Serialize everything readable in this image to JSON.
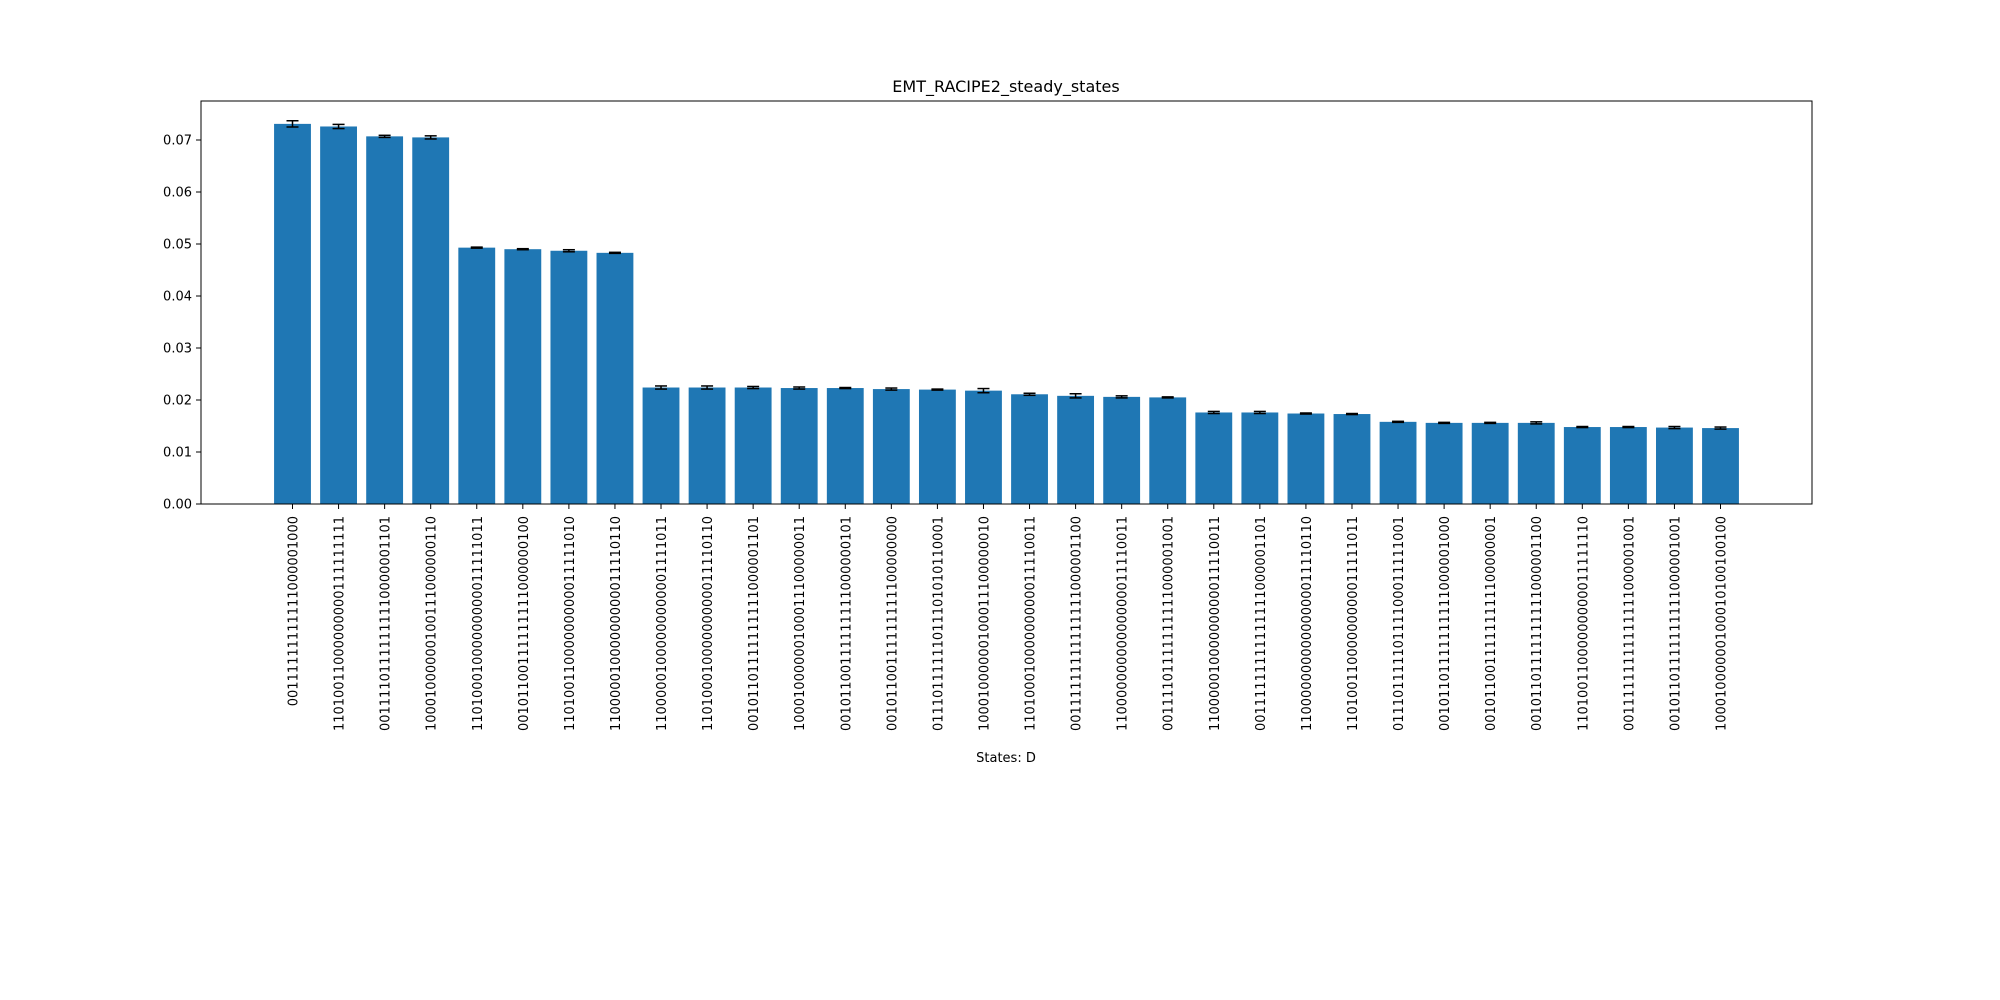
{
  "chart_data": {
    "type": "bar",
    "title": "EMT_RACIPE2_steady_states",
    "xlabel": "States: D",
    "ylabel": "",
    "ylim": [
      0,
      0.0775
    ],
    "yticks": [
      "0.00",
      "0.01",
      "0.02",
      "0.03",
      "0.04",
      "0.05",
      "0.06",
      "0.07"
    ],
    "grid": false,
    "colors": {
      "bar": "#1f77b4",
      "errorbar": "#000000",
      "axis": "#000000"
    },
    "categories": [
      "00111111111111000001000",
      "11010011000000000111111111",
      "00111101111111110000001101",
      "10001000000100111000000110",
      "11010001000000000011111011",
      "00101100111111111000000100",
      "11010011000000000011111010",
      "11000001000000000011110110",
      "11000001000000000001111011",
      "11010001000000000011110110",
      "00101101111111111000001101",
      "10001000000100011100000011",
      "00101100111111111000000101",
      "00101100111111111100000000",
      "01110111111011101010110001",
      "10001000000100011100000010",
      "11010001000000000011110011",
      "00111111111111111000001100",
      "11000000000000000011110011",
      "00111101111111111000001001",
      "11000001000000000011110011",
      "00111111111111111000001101",
      "11000000000000000011110110",
      "11010011000000000011111011",
      "01110111110111100011111001",
      "00101101111111111000001000",
      "00101100111111111100000001",
      "00101101111111111000001100",
      "11010011000000000011111110",
      "00111111111111111000001001",
      "00101101111111111000001001",
      "10001000000100010100100100"
    ],
    "values": [
      0.0731,
      0.0726,
      0.0707,
      0.0705,
      0.0493,
      0.049,
      0.0487,
      0.0483,
      0.0224,
      0.0224,
      0.0224,
      0.0223,
      0.0223,
      0.0221,
      0.022,
      0.0218,
      0.0211,
      0.0208,
      0.0206,
      0.0205,
      0.0176,
      0.0176,
      0.0174,
      0.0173,
      0.0158,
      0.0156,
      0.0156,
      0.0156,
      0.0148,
      0.0148,
      0.0147,
      0.0146
    ],
    "errors": [
      0.0006,
      0.0004,
      0.0002,
      0.0003,
      0.0001,
      0.0001,
      0.0002,
      0.0001,
      0.0003,
      0.0003,
      0.0002,
      0.0002,
      0.0001,
      0.0002,
      0.0001,
      0.0004,
      0.0002,
      0.0004,
      0.0002,
      0.0001,
      0.0002,
      0.0002,
      0.0001,
      0.0001,
      0.0001,
      0.0001,
      0.0001,
      0.0002,
      0.0001,
      0.0001,
      0.0002,
      0.0002
    ]
  }
}
